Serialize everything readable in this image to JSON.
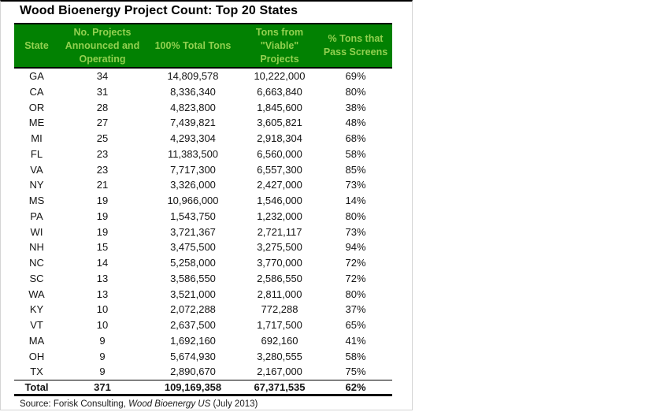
{
  "title": "Wood Bioenergy Project Count: Top 20 States",
  "colors": {
    "header_bg": "#028102",
    "header_text": "#92D050",
    "frame_border": "#d4d4d4",
    "line": "#000000"
  },
  "table": {
    "headers": [
      "State",
      "No. Projects\nAnnounced and\nOperating",
      "100% Total Tons",
      "Tons from\n\"Viable\"\nProjects",
      "% Tons that\nPass Screens"
    ],
    "rows": [
      [
        "GA",
        "34",
        "14,809,578",
        "10,222,000",
        "69%"
      ],
      [
        "CA",
        "31",
        "8,336,340",
        "6,663,840",
        "80%"
      ],
      [
        "OR",
        "28",
        "4,823,800",
        "1,845,600",
        "38%"
      ],
      [
        "ME",
        "27",
        "7,439,821",
        "3,605,821",
        "48%"
      ],
      [
        "MI",
        "25",
        "4,293,304",
        "2,918,304",
        "68%"
      ],
      [
        "FL",
        "23",
        "11,383,500",
        "6,560,000",
        "58%"
      ],
      [
        "VA",
        "23",
        "7,717,300",
        "6,557,300",
        "85%"
      ],
      [
        "NY",
        "21",
        "3,326,000",
        "2,427,000",
        "73%"
      ],
      [
        "MS",
        "19",
        "10,966,000",
        "1,546,000",
        "14%"
      ],
      [
        "PA",
        "19",
        "1,543,750",
        "1,232,000",
        "80%"
      ],
      [
        "WI",
        "19",
        "3,721,367",
        "2,721,117",
        "73%"
      ],
      [
        "NH",
        "15",
        "3,475,500",
        "3,275,500",
        "94%"
      ],
      [
        "NC",
        "14",
        "5,258,000",
        "3,770,000",
        "72%"
      ],
      [
        "SC",
        "13",
        "3,586,550",
        "2,586,550",
        "72%"
      ],
      [
        "WA",
        "13",
        "3,521,000",
        "2,811,000",
        "80%"
      ],
      [
        "KY",
        "10",
        "2,072,288",
        "772,288",
        "37%"
      ],
      [
        "VT",
        "10",
        "2,637,500",
        "1,717,500",
        "65%"
      ],
      [
        "MA",
        "9",
        "1,692,160",
        "692,160",
        "41%"
      ],
      [
        "OH",
        "9",
        "5,674,930",
        "3,280,555",
        "58%"
      ],
      [
        "TX",
        "9",
        "2,890,670",
        "2,167,000",
        "75%"
      ]
    ],
    "total": [
      "Total",
      "371",
      "109,169,358",
      "67,371,535",
      "62%"
    ]
  },
  "source": {
    "prefix": "Source: Forisk Consulting, ",
    "italic": "Wood Bioenergy US",
    "suffix": " (July 2013)"
  }
}
